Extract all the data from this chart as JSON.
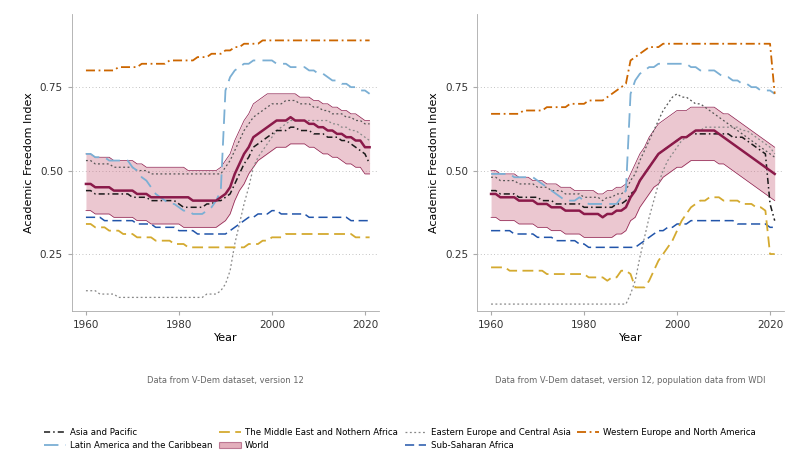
{
  "years": [
    1960,
    1961,
    1962,
    1963,
    1964,
    1965,
    1966,
    1967,
    1968,
    1969,
    1970,
    1971,
    1972,
    1973,
    1974,
    1975,
    1976,
    1977,
    1978,
    1979,
    1980,
    1981,
    1982,
    1983,
    1984,
    1985,
    1986,
    1987,
    1988,
    1989,
    1990,
    1991,
    1992,
    1993,
    1994,
    1995,
    1996,
    1997,
    1998,
    1999,
    2000,
    2001,
    2002,
    2003,
    2004,
    2005,
    2006,
    2007,
    2008,
    2009,
    2010,
    2011,
    2012,
    2013,
    2014,
    2015,
    2016,
    2017,
    2018,
    2019,
    2020,
    2021
  ],
  "left": {
    "world_mean": [
      0.46,
      0.46,
      0.45,
      0.45,
      0.45,
      0.45,
      0.44,
      0.44,
      0.44,
      0.44,
      0.44,
      0.43,
      0.43,
      0.43,
      0.42,
      0.42,
      0.42,
      0.42,
      0.42,
      0.42,
      0.42,
      0.42,
      0.42,
      0.41,
      0.41,
      0.41,
      0.41,
      0.41,
      0.41,
      0.42,
      0.43,
      0.45,
      0.49,
      0.52,
      0.55,
      0.57,
      0.6,
      0.61,
      0.62,
      0.63,
      0.64,
      0.65,
      0.65,
      0.65,
      0.66,
      0.65,
      0.65,
      0.65,
      0.64,
      0.64,
      0.63,
      0.63,
      0.62,
      0.62,
      0.61,
      0.61,
      0.6,
      0.6,
      0.59,
      0.59,
      0.57,
      0.57
    ],
    "world_upper": [
      0.55,
      0.55,
      0.54,
      0.54,
      0.54,
      0.54,
      0.53,
      0.53,
      0.53,
      0.53,
      0.53,
      0.52,
      0.52,
      0.51,
      0.51,
      0.51,
      0.51,
      0.51,
      0.51,
      0.51,
      0.51,
      0.51,
      0.5,
      0.5,
      0.5,
      0.5,
      0.5,
      0.5,
      0.5,
      0.51,
      0.53,
      0.55,
      0.59,
      0.62,
      0.65,
      0.67,
      0.7,
      0.71,
      0.72,
      0.73,
      0.73,
      0.73,
      0.73,
      0.73,
      0.73,
      0.73,
      0.72,
      0.72,
      0.72,
      0.71,
      0.71,
      0.7,
      0.7,
      0.69,
      0.69,
      0.68,
      0.68,
      0.67,
      0.67,
      0.66,
      0.65,
      0.65
    ],
    "world_lower": [
      0.38,
      0.38,
      0.37,
      0.37,
      0.37,
      0.37,
      0.36,
      0.36,
      0.36,
      0.36,
      0.36,
      0.35,
      0.35,
      0.35,
      0.34,
      0.34,
      0.34,
      0.34,
      0.34,
      0.34,
      0.34,
      0.33,
      0.33,
      0.33,
      0.33,
      0.33,
      0.33,
      0.33,
      0.33,
      0.34,
      0.35,
      0.37,
      0.41,
      0.44,
      0.46,
      0.49,
      0.51,
      0.53,
      0.54,
      0.55,
      0.56,
      0.57,
      0.57,
      0.57,
      0.58,
      0.58,
      0.58,
      0.58,
      0.57,
      0.57,
      0.56,
      0.55,
      0.55,
      0.54,
      0.54,
      0.53,
      0.52,
      0.52,
      0.51,
      0.51,
      0.49,
      0.49
    ],
    "world_dotted": [
      0.53,
      0.53,
      0.52,
      0.52,
      0.52,
      0.52,
      0.51,
      0.51,
      0.51,
      0.51,
      0.51,
      0.5,
      0.5,
      0.5,
      0.49,
      0.49,
      0.49,
      0.49,
      0.49,
      0.49,
      0.49,
      0.49,
      0.49,
      0.49,
      0.49,
      0.49,
      0.49,
      0.49,
      0.49,
      0.49,
      0.51,
      0.53,
      0.56,
      0.59,
      0.62,
      0.64,
      0.66,
      0.67,
      0.68,
      0.69,
      0.7,
      0.7,
      0.7,
      0.71,
      0.71,
      0.71,
      0.7,
      0.7,
      0.7,
      0.69,
      0.69,
      0.68,
      0.68,
      0.67,
      0.67,
      0.67,
      0.66,
      0.66,
      0.65,
      0.65,
      0.64,
      0.64
    ],
    "asia_pacific": [
      0.44,
      0.44,
      0.43,
      0.43,
      0.43,
      0.43,
      0.43,
      0.43,
      0.43,
      0.43,
      0.42,
      0.42,
      0.42,
      0.42,
      0.41,
      0.41,
      0.41,
      0.41,
      0.41,
      0.41,
      0.4,
      0.39,
      0.39,
      0.39,
      0.39,
      0.39,
      0.4,
      0.4,
      0.41,
      0.41,
      0.42,
      0.43,
      0.46,
      0.49,
      0.52,
      0.54,
      0.57,
      0.58,
      0.59,
      0.6,
      0.61,
      0.62,
      0.62,
      0.62,
      0.63,
      0.63,
      0.62,
      0.62,
      0.62,
      0.61,
      0.61,
      0.61,
      0.6,
      0.6,
      0.6,
      0.59,
      0.59,
      0.58,
      0.57,
      0.56,
      0.55,
      0.52
    ],
    "eastern_europe": [
      0.14,
      0.14,
      0.14,
      0.13,
      0.13,
      0.13,
      0.13,
      0.12,
      0.12,
      0.12,
      0.12,
      0.12,
      0.12,
      0.12,
      0.12,
      0.12,
      0.12,
      0.12,
      0.12,
      0.12,
      0.12,
      0.12,
      0.12,
      0.12,
      0.12,
      0.12,
      0.13,
      0.13,
      0.13,
      0.14,
      0.16,
      0.2,
      0.28,
      0.34,
      0.4,
      0.45,
      0.51,
      0.54,
      0.56,
      0.58,
      0.6,
      0.62,
      0.63,
      0.64,
      0.65,
      0.65,
      0.65,
      0.65,
      0.65,
      0.65,
      0.65,
      0.65,
      0.65,
      0.64,
      0.64,
      0.63,
      0.63,
      0.62,
      0.62,
      0.61,
      0.6,
      0.59
    ],
    "latin_america": [
      0.55,
      0.55,
      0.54,
      0.54,
      0.54,
      0.53,
      0.53,
      0.53,
      0.53,
      0.53,
      0.51,
      0.5,
      0.48,
      0.47,
      0.45,
      0.43,
      0.42,
      0.41,
      0.4,
      0.4,
      0.39,
      0.38,
      0.38,
      0.37,
      0.37,
      0.37,
      0.38,
      0.39,
      0.41,
      0.44,
      0.74,
      0.78,
      0.8,
      0.81,
      0.82,
      0.82,
      0.83,
      0.83,
      0.83,
      0.83,
      0.83,
      0.82,
      0.82,
      0.82,
      0.81,
      0.81,
      0.81,
      0.81,
      0.8,
      0.8,
      0.79,
      0.79,
      0.78,
      0.77,
      0.77,
      0.76,
      0.76,
      0.75,
      0.75,
      0.74,
      0.74,
      0.73
    ],
    "middle_east": [
      0.34,
      0.34,
      0.33,
      0.33,
      0.33,
      0.32,
      0.32,
      0.32,
      0.31,
      0.31,
      0.31,
      0.3,
      0.3,
      0.3,
      0.3,
      0.29,
      0.29,
      0.29,
      0.29,
      0.28,
      0.28,
      0.28,
      0.27,
      0.27,
      0.27,
      0.27,
      0.27,
      0.27,
      0.27,
      0.27,
      0.27,
      0.27,
      0.27,
      0.27,
      0.27,
      0.28,
      0.28,
      0.28,
      0.29,
      0.29,
      0.3,
      0.3,
      0.3,
      0.31,
      0.31,
      0.31,
      0.31,
      0.31,
      0.31,
      0.31,
      0.31,
      0.31,
      0.31,
      0.31,
      0.31,
      0.31,
      0.31,
      0.31,
      0.3,
      0.3,
      0.3,
      0.3
    ],
    "sub_saharan": [
      0.36,
      0.36,
      0.36,
      0.36,
      0.35,
      0.35,
      0.35,
      0.35,
      0.35,
      0.35,
      0.35,
      0.34,
      0.34,
      0.34,
      0.34,
      0.33,
      0.33,
      0.33,
      0.33,
      0.33,
      0.32,
      0.32,
      0.32,
      0.32,
      0.31,
      0.31,
      0.31,
      0.31,
      0.31,
      0.31,
      0.31,
      0.32,
      0.33,
      0.34,
      0.35,
      0.36,
      0.36,
      0.37,
      0.37,
      0.37,
      0.38,
      0.38,
      0.37,
      0.37,
      0.37,
      0.37,
      0.37,
      0.37,
      0.36,
      0.36,
      0.36,
      0.36,
      0.36,
      0.36,
      0.36,
      0.36,
      0.36,
      0.35,
      0.35,
      0.35,
      0.35,
      0.35
    ],
    "western_europe": [
      0.8,
      0.8,
      0.8,
      0.8,
      0.8,
      0.8,
      0.8,
      0.81,
      0.81,
      0.81,
      0.81,
      0.81,
      0.82,
      0.82,
      0.82,
      0.82,
      0.82,
      0.82,
      0.83,
      0.83,
      0.83,
      0.83,
      0.83,
      0.83,
      0.84,
      0.84,
      0.84,
      0.85,
      0.85,
      0.85,
      0.86,
      0.86,
      0.87,
      0.87,
      0.88,
      0.88,
      0.88,
      0.88,
      0.89,
      0.89,
      0.89,
      0.89,
      0.89,
      0.89,
      0.89,
      0.89,
      0.89,
      0.89,
      0.89,
      0.89,
      0.89,
      0.89,
      0.89,
      0.89,
      0.89,
      0.89,
      0.89,
      0.89,
      0.89,
      0.89,
      0.89,
      0.89
    ]
  },
  "right": {
    "world_mean": [
      0.43,
      0.43,
      0.42,
      0.42,
      0.42,
      0.42,
      0.41,
      0.41,
      0.41,
      0.41,
      0.4,
      0.4,
      0.4,
      0.39,
      0.39,
      0.39,
      0.38,
      0.38,
      0.38,
      0.38,
      0.37,
      0.37,
      0.37,
      0.37,
      0.36,
      0.37,
      0.37,
      0.38,
      0.38,
      0.39,
      0.42,
      0.44,
      0.47,
      0.49,
      0.51,
      0.53,
      0.55,
      0.56,
      0.57,
      0.58,
      0.59,
      0.6,
      0.6,
      0.61,
      0.62,
      0.62,
      0.62,
      0.62,
      0.62,
      0.61,
      0.6,
      0.59,
      0.58,
      0.57,
      0.56,
      0.55,
      0.54,
      0.53,
      0.52,
      0.51,
      0.5,
      0.49
    ],
    "world_upper": [
      0.5,
      0.5,
      0.49,
      0.49,
      0.49,
      0.49,
      0.48,
      0.48,
      0.48,
      0.47,
      0.47,
      0.47,
      0.46,
      0.46,
      0.46,
      0.45,
      0.45,
      0.45,
      0.44,
      0.44,
      0.44,
      0.44,
      0.44,
      0.43,
      0.43,
      0.44,
      0.44,
      0.45,
      0.45,
      0.46,
      0.49,
      0.52,
      0.55,
      0.57,
      0.6,
      0.62,
      0.64,
      0.65,
      0.66,
      0.67,
      0.68,
      0.68,
      0.68,
      0.69,
      0.69,
      0.69,
      0.69,
      0.69,
      0.69,
      0.68,
      0.67,
      0.67,
      0.66,
      0.65,
      0.64,
      0.63,
      0.62,
      0.61,
      0.6,
      0.59,
      0.58,
      0.57
    ],
    "world_lower": [
      0.36,
      0.36,
      0.35,
      0.35,
      0.35,
      0.35,
      0.34,
      0.34,
      0.34,
      0.34,
      0.33,
      0.33,
      0.33,
      0.32,
      0.32,
      0.32,
      0.31,
      0.31,
      0.31,
      0.31,
      0.3,
      0.3,
      0.3,
      0.3,
      0.3,
      0.3,
      0.3,
      0.31,
      0.31,
      0.32,
      0.35,
      0.36,
      0.39,
      0.41,
      0.43,
      0.45,
      0.46,
      0.48,
      0.49,
      0.5,
      0.51,
      0.51,
      0.52,
      0.53,
      0.53,
      0.53,
      0.53,
      0.53,
      0.53,
      0.52,
      0.52,
      0.51,
      0.5,
      0.49,
      0.48,
      0.47,
      0.46,
      0.45,
      0.44,
      0.43,
      0.42,
      0.41
    ],
    "world_dotted": [
      0.48,
      0.48,
      0.47,
      0.47,
      0.47,
      0.47,
      0.46,
      0.46,
      0.46,
      0.46,
      0.45,
      0.45,
      0.45,
      0.44,
      0.44,
      0.44,
      0.43,
      0.43,
      0.43,
      0.43,
      0.42,
      0.42,
      0.42,
      0.42,
      0.41,
      0.42,
      0.42,
      0.43,
      0.43,
      0.44,
      0.47,
      0.49,
      0.53,
      0.56,
      0.59,
      0.62,
      0.65,
      0.68,
      0.7,
      0.72,
      0.73,
      0.72,
      0.72,
      0.71,
      0.7,
      0.7,
      0.69,
      0.68,
      0.67,
      0.66,
      0.65,
      0.64,
      0.63,
      0.62,
      0.61,
      0.6,
      0.59,
      0.58,
      0.57,
      0.56,
      0.55,
      0.54
    ],
    "asia_pacific": [
      0.44,
      0.44,
      0.43,
      0.43,
      0.43,
      0.43,
      0.42,
      0.42,
      0.42,
      0.42,
      0.42,
      0.41,
      0.41,
      0.41,
      0.4,
      0.4,
      0.4,
      0.4,
      0.4,
      0.4,
      0.39,
      0.39,
      0.39,
      0.39,
      0.39,
      0.39,
      0.39,
      0.4,
      0.4,
      0.41,
      0.43,
      0.44,
      0.47,
      0.49,
      0.51,
      0.53,
      0.55,
      0.56,
      0.57,
      0.58,
      0.59,
      0.6,
      0.6,
      0.61,
      0.61,
      0.61,
      0.61,
      0.61,
      0.61,
      0.61,
      0.61,
      0.61,
      0.6,
      0.6,
      0.6,
      0.59,
      0.58,
      0.57,
      0.56,
      0.55,
      0.4,
      0.35
    ],
    "eastern_europe": [
      0.1,
      0.1,
      0.1,
      0.1,
      0.1,
      0.1,
      0.1,
      0.1,
      0.1,
      0.1,
      0.1,
      0.1,
      0.1,
      0.1,
      0.1,
      0.1,
      0.1,
      0.1,
      0.1,
      0.1,
      0.1,
      0.1,
      0.1,
      0.1,
      0.1,
      0.1,
      0.1,
      0.1,
      0.1,
      0.1,
      0.13,
      0.17,
      0.24,
      0.3,
      0.36,
      0.41,
      0.46,
      0.5,
      0.53,
      0.55,
      0.57,
      0.59,
      0.6,
      0.61,
      0.62,
      0.62,
      0.63,
      0.63,
      0.63,
      0.63,
      0.63,
      0.63,
      0.63,
      0.63,
      0.62,
      0.62,
      0.61,
      0.6,
      0.59,
      0.58,
      0.57,
      0.55
    ],
    "latin_america": [
      0.49,
      0.49,
      0.49,
      0.49,
      0.49,
      0.48,
      0.48,
      0.48,
      0.48,
      0.48,
      0.47,
      0.46,
      0.45,
      0.44,
      0.43,
      0.42,
      0.41,
      0.41,
      0.41,
      0.42,
      0.41,
      0.4,
      0.4,
      0.4,
      0.4,
      0.4,
      0.4,
      0.4,
      0.42,
      0.44,
      0.73,
      0.77,
      0.79,
      0.8,
      0.81,
      0.81,
      0.82,
      0.82,
      0.82,
      0.82,
      0.82,
      0.82,
      0.82,
      0.81,
      0.81,
      0.8,
      0.8,
      0.8,
      0.8,
      0.79,
      0.78,
      0.78,
      0.77,
      0.77,
      0.76,
      0.76,
      0.75,
      0.75,
      0.74,
      0.74,
      0.74,
      0.73
    ],
    "middle_east": [
      0.21,
      0.21,
      0.21,
      0.21,
      0.2,
      0.2,
      0.2,
      0.2,
      0.2,
      0.2,
      0.2,
      0.2,
      0.19,
      0.19,
      0.19,
      0.19,
      0.19,
      0.19,
      0.19,
      0.19,
      0.19,
      0.18,
      0.18,
      0.18,
      0.18,
      0.17,
      0.18,
      0.18,
      0.2,
      0.2,
      0.19,
      0.15,
      0.15,
      0.15,
      0.17,
      0.2,
      0.23,
      0.25,
      0.27,
      0.29,
      0.32,
      0.35,
      0.37,
      0.39,
      0.4,
      0.41,
      0.41,
      0.42,
      0.42,
      0.42,
      0.41,
      0.41,
      0.41,
      0.41,
      0.4,
      0.4,
      0.4,
      0.39,
      0.39,
      0.38,
      0.25,
      0.25
    ],
    "sub_saharan": [
      0.32,
      0.32,
      0.32,
      0.32,
      0.32,
      0.31,
      0.31,
      0.31,
      0.31,
      0.31,
      0.3,
      0.3,
      0.3,
      0.3,
      0.29,
      0.29,
      0.29,
      0.29,
      0.29,
      0.28,
      0.28,
      0.27,
      0.27,
      0.27,
      0.27,
      0.27,
      0.27,
      0.27,
      0.27,
      0.27,
      0.27,
      0.27,
      0.28,
      0.29,
      0.3,
      0.31,
      0.32,
      0.32,
      0.33,
      0.33,
      0.34,
      0.34,
      0.34,
      0.35,
      0.35,
      0.35,
      0.35,
      0.35,
      0.35,
      0.35,
      0.35,
      0.35,
      0.35,
      0.34,
      0.34,
      0.34,
      0.34,
      0.34,
      0.34,
      0.34,
      0.33,
      0.33
    ],
    "western_europe": [
      0.67,
      0.67,
      0.67,
      0.67,
      0.67,
      0.67,
      0.67,
      0.68,
      0.68,
      0.68,
      0.68,
      0.68,
      0.69,
      0.69,
      0.69,
      0.69,
      0.69,
      0.7,
      0.7,
      0.7,
      0.7,
      0.71,
      0.71,
      0.71,
      0.71,
      0.72,
      0.73,
      0.74,
      0.75,
      0.76,
      0.83,
      0.84,
      0.85,
      0.86,
      0.87,
      0.87,
      0.87,
      0.88,
      0.88,
      0.88,
      0.88,
      0.88,
      0.88,
      0.88,
      0.88,
      0.88,
      0.88,
      0.88,
      0.88,
      0.88,
      0.88,
      0.88,
      0.88,
      0.88,
      0.88,
      0.88,
      0.88,
      0.88,
      0.88,
      0.88,
      0.88,
      0.73
    ]
  },
  "colors": {
    "asia_pacific": "#1a1a1a",
    "eastern_europe": "#888888",
    "latin_america": "#7bafd4",
    "middle_east": "#d4aa30",
    "sub_saharan": "#2255aa",
    "western_europe": "#cc6600",
    "world_fill": "#c8607a",
    "world_solid": "#8b1a4a",
    "world_dotted": "#888888"
  },
  "left_caption": "Data from V-Dem dataset, version 12",
  "right_caption": "Data from V-Dem dataset, version 12, population data from WDI",
  "ylabel": "Academic Freedom Index",
  "xlabel": "Year",
  "ylim": [
    0.08,
    0.97
  ],
  "yticks": [
    0.25,
    0.5,
    0.75
  ],
  "xlim": [
    1957,
    2023
  ],
  "xticks": [
    1960,
    1980,
    2000,
    2020
  ]
}
